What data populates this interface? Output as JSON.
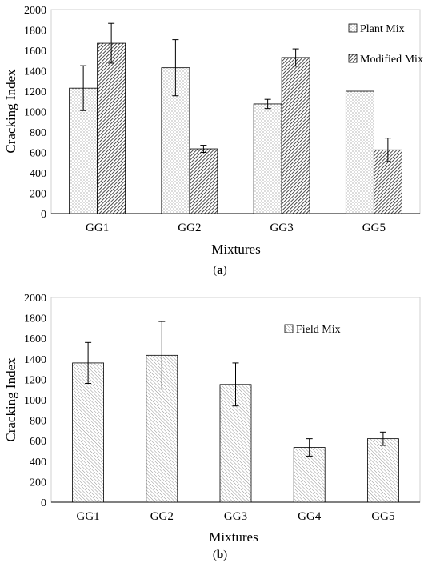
{
  "chart_data": [
    {
      "id": "a",
      "type": "bar",
      "panel_label": "a",
      "xlabel": "Mixtures",
      "ylabel": "Cracking Index",
      "ylim": [
        0,
        2000
      ],
      "ytick_step": 200,
      "yticks": [
        "0",
        "200",
        "400",
        "600",
        "800",
        "1000",
        "1200",
        "1400",
        "1600",
        "1800",
        "2000"
      ],
      "categories": [
        "GG1",
        "GG2",
        "GG3",
        "GG5"
      ],
      "legend_position": "top-right",
      "grid": false,
      "series": [
        {
          "name": "Plant Mix",
          "pattern": "dots",
          "values": [
            1230,
            1430,
            1075,
            1200
          ],
          "errors": [
            220,
            275,
            45,
            null
          ]
        },
        {
          "name": "Modified Mix",
          "pattern": "dense-diagonal",
          "values": [
            1670,
            635,
            1530,
            625
          ],
          "errors": [
            195,
            35,
            85,
            115
          ]
        }
      ]
    },
    {
      "id": "b",
      "type": "bar",
      "panel_label": "b",
      "xlabel": "Mixtures",
      "ylabel": "Cracking Index",
      "ylim": [
        0,
        2000
      ],
      "ytick_step": 200,
      "yticks": [
        "0",
        "200",
        "400",
        "600",
        "800",
        "1000",
        "1200",
        "1400",
        "1600",
        "1800",
        "2000"
      ],
      "categories": [
        "GG1",
        "GG2",
        "GG3",
        "GG4",
        "GG5"
      ],
      "legend_position": "top-right",
      "grid": false,
      "series": [
        {
          "name": "Field Mix",
          "pattern": "light-diagonal",
          "values": [
            1360,
            1435,
            1150,
            535,
            620
          ],
          "errors": [
            200,
            330,
            210,
            85,
            65
          ]
        }
      ]
    }
  ]
}
